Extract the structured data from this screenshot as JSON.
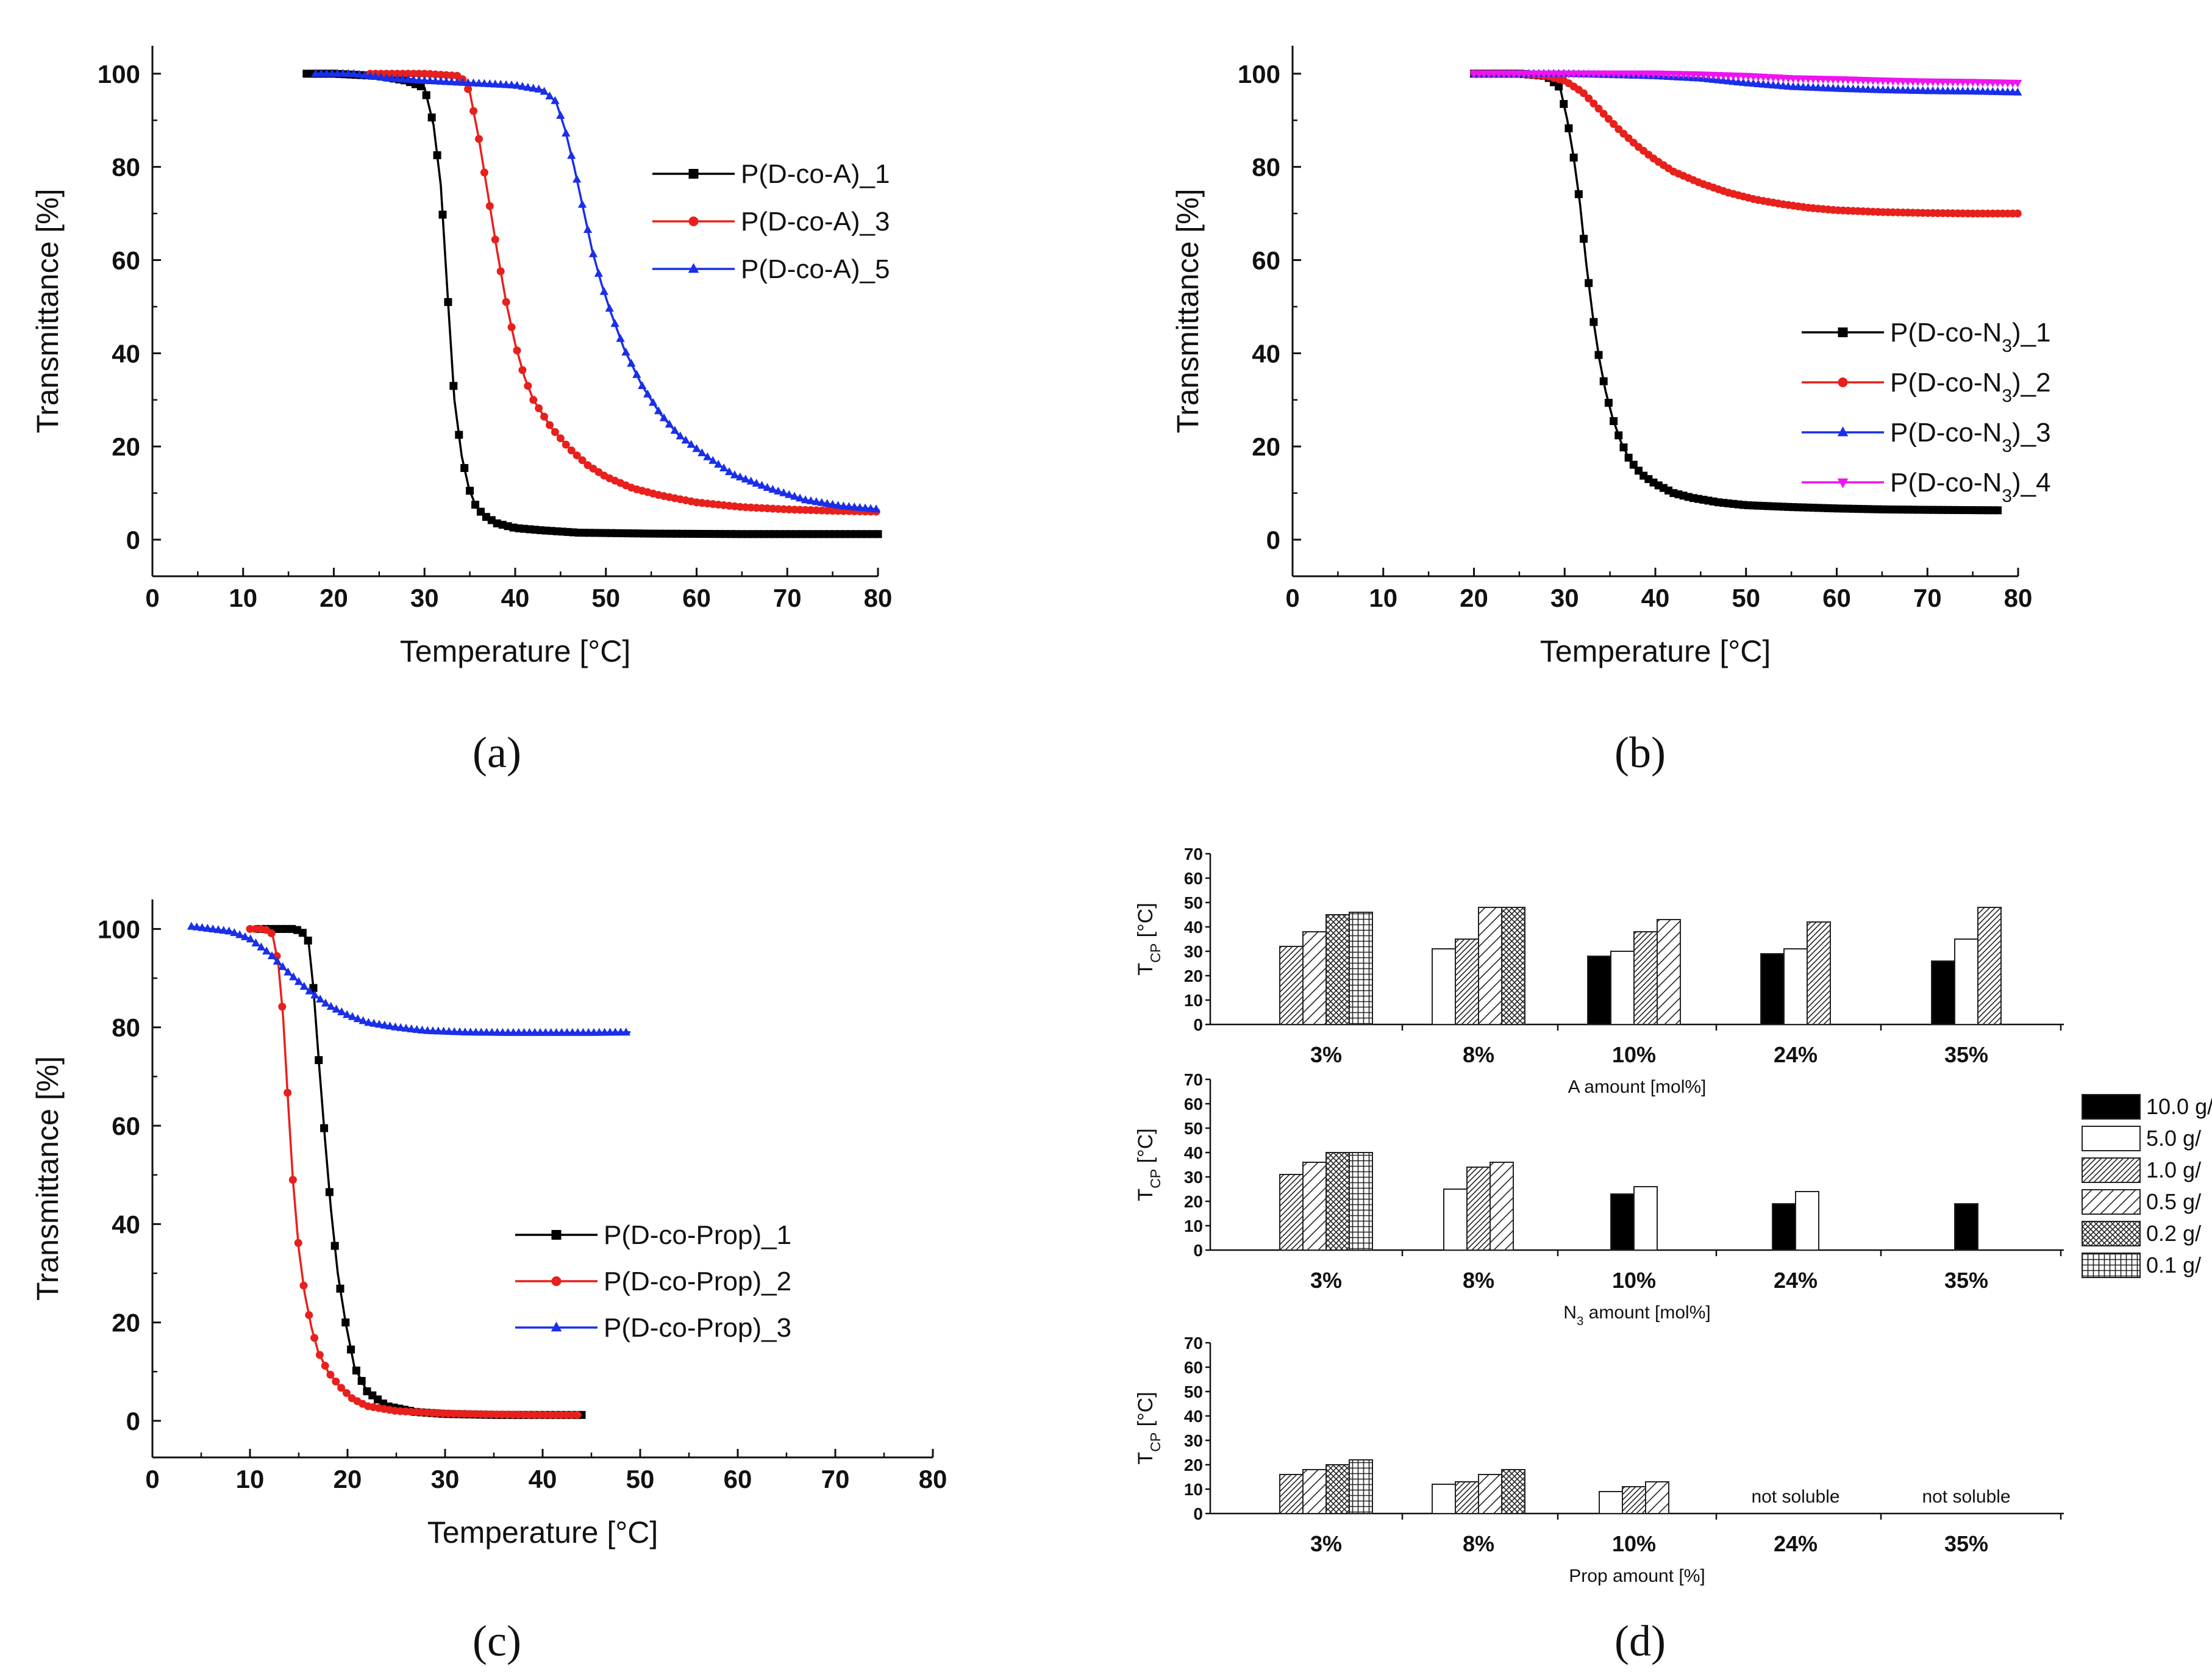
{
  "panels": {
    "a": {
      "label": "(a)"
    },
    "b": {
      "label": "(b)"
    },
    "c": {
      "label": "(c)"
    },
    "d": {
      "label": "(d)"
    }
  },
  "chart_data": [
    {
      "id": "a",
      "type": "line",
      "xlabel": "Temperature [°C]",
      "ylabel": "Transmittance [%]",
      "xlim": [
        0,
        80
      ],
      "ylim": [
        0,
        100
      ],
      "xticks": [
        0,
        10,
        20,
        30,
        40,
        50,
        60,
        70,
        80
      ],
      "yticks": [
        0,
        20,
        40,
        60,
        80,
        100
      ],
      "legend_position": "top-right",
      "series": [
        {
          "name": "P(D-co-A)_1",
          "color": "#000000",
          "marker": "square",
          "x": [
            17,
            20,
            25,
            28,
            30,
            31,
            31.8,
            32.6,
            33.3,
            34.1,
            34.9,
            35.7,
            36.7,
            38,
            40,
            43,
            47,
            55,
            65,
            80
          ],
          "y": [
            100,
            100,
            99.5,
            98.5,
            97,
            89,
            76,
            51,
            30,
            18,
            11,
            7,
            5,
            3.5,
            2.5,
            2,
            1.5,
            1.3,
            1.2,
            1.2
          ]
        },
        {
          "name": "P(D-co-A)_3",
          "color": "#e8201c",
          "marker": "circle",
          "x": [
            24,
            30,
            34,
            35,
            36,
            37,
            38,
            39,
            40,
            41,
            42,
            44,
            46,
            48,
            50,
            53,
            56,
            60,
            65,
            70,
            75,
            80
          ],
          "y": [
            100,
            100,
            99.5,
            96,
            86,
            74,
            62,
            51,
            42,
            35,
            30,
            24,
            19.5,
            16,
            13.5,
            11,
            9.5,
            8,
            7,
            6.5,
            6.2,
            6
          ]
        },
        {
          "name": "P(D-co-A)_5",
          "color": "#1a2fe8",
          "marker": "triangle",
          "x": [
            18,
            22,
            26,
            30,
            35,
            40,
            43,
            44.5,
            45.5,
            46.5,
            47.5,
            48.5,
            49.5,
            50.5,
            52,
            54,
            56,
            58,
            61,
            64,
            68,
            72,
            76,
            80
          ],
          "y": [
            100,
            100,
            99,
            98.5,
            98,
            97.5,
            96.5,
            94,
            88,
            80,
            71,
            62,
            55,
            49,
            41,
            33,
            27,
            22.5,
            18,
            14,
            11,
            8.5,
            7.2,
            6.5
          ]
        }
      ]
    },
    {
      "id": "b",
      "type": "line",
      "xlabel": "Temperature [°C]",
      "ylabel": "Transmittance [%]",
      "xlim": [
        0,
        80
      ],
      "ylim": [
        0,
        100
      ],
      "xticks": [
        0,
        10,
        20,
        30,
        40,
        50,
        60,
        70,
        80
      ],
      "yticks": [
        0,
        20,
        40,
        60,
        80,
        100
      ],
      "legend_position": "center-right",
      "series": [
        {
          "name": "P(D-co-N3)_1",
          "label_main": "P(D-co-N",
          "label_sub": "3",
          "label_tail": ")_1",
          "color": "#000000",
          "marker": "square",
          "x": [
            20,
            25,
            28,
            29.5,
            30.3,
            31,
            31.7,
            32.4,
            33.1,
            33.8,
            34.5,
            35.3,
            36.2,
            37.2,
            38.5,
            40,
            42,
            44,
            47,
            50,
            55,
            60,
            65,
            70,
            78
          ],
          "y": [
            100,
            100,
            99.5,
            97,
            90,
            82,
            72,
            59,
            48,
            39,
            32,
            26,
            21,
            17,
            14,
            12,
            10,
            9,
            8,
            7.4,
            7,
            6.7,
            6.5,
            6.4,
            6.3
          ]
        },
        {
          "name": "P(D-co-N3)_2",
          "label_main": "P(D-co-N",
          "label_sub": "3",
          "label_tail": ")_2",
          "color": "#e8201c",
          "marker": "circle",
          "x": [
            20,
            25,
            28,
            30,
            32,
            34,
            36,
            38,
            40,
            42,
            45,
            48,
            51,
            54,
            57,
            60,
            65,
            70,
            75,
            80
          ],
          "y": [
            100,
            100,
            99.5,
            98.5,
            96,
            92,
            88,
            84.5,
            81.5,
            79,
            76.5,
            74.5,
            73,
            72,
            71.2,
            70.7,
            70.3,
            70.1,
            70,
            70
          ]
        },
        {
          "name": "P(D-co-N3)_3",
          "label_main": "P(D-co-N",
          "label_sub": "3",
          "label_tail": ")_3",
          "color": "#1a2fe8",
          "marker": "triangle",
          "x": [
            20,
            30,
            40,
            45,
            50,
            55,
            60,
            65,
            70,
            75,
            80
          ],
          "y": [
            100,
            100,
            99.5,
            99,
            98,
            97.2,
            96.8,
            96.5,
            96.3,
            96.2,
            96
          ]
        },
        {
          "name": "P(D-co-N3)_4",
          "label_main": "P(D-co-N",
          "label_sub": "3",
          "label_tail": ")_4",
          "color": "#f012f0",
          "marker": "triangle-down",
          "x": [
            20,
            30,
            40,
            45,
            50,
            55,
            60,
            65,
            70,
            75,
            80
          ],
          "y": [
            100,
            100,
            100,
            99.8,
            99.5,
            99,
            98.8,
            98.5,
            98.3,
            98.2,
            98
          ]
        }
      ]
    },
    {
      "id": "c",
      "type": "line",
      "xlabel": "Temperature [°C]",
      "ylabel": "Transmittance [%]",
      "xlim": [
        0,
        80
      ],
      "ylim": [
        0,
        100
      ],
      "xticks": [
        0,
        10,
        20,
        30,
        40,
        50,
        60,
        70,
        80
      ],
      "yticks": [
        0,
        20,
        40,
        60,
        80,
        100
      ],
      "legend_position": "bottom-center",
      "series": [
        {
          "name": "P(D-co-Prop)_1",
          "color": "#000000",
          "marker": "square",
          "x": [
            11,
            13,
            14.5,
            15.3,
            16,
            16.5,
            17.1,
            17.7,
            18.3,
            19,
            19.8,
            20.7,
            22,
            24,
            27,
            30,
            35,
            40,
            44
          ],
          "y": [
            100,
            100,
            100,
            99.5,
            97.5,
            88,
            72,
            57,
            43,
            30,
            20,
            11,
            6,
            3,
            1.8,
            1.4,
            1.2,
            1.2,
            1.2
          ]
        },
        {
          "name": "P(D-co-Prop)_2",
          "color": "#e8201c",
          "marker": "circle",
          "x": [
            10,
            11.5,
            12.3,
            12.9,
            13.4,
            13.9,
            14.4,
            15,
            15.6,
            16.3,
            17,
            18,
            19.2,
            20.5,
            22,
            25,
            30,
            35,
            40,
            44
          ],
          "y": [
            100,
            100,
            99,
            93,
            82,
            65,
            49,
            35,
            26,
            19,
            14,
            10,
            7,
            4.5,
            3,
            2,
            1.5,
            1.3,
            1.2,
            1.2
          ]
        },
        {
          "name": "P(D-co-Prop)_3",
          "color": "#1a2fe8",
          "marker": "triangle",
          "x": [
            4,
            6,
            8,
            10,
            12,
            14,
            16,
            18,
            20,
            22,
            25,
            28,
            32,
            36,
            40,
            45,
            49
          ],
          "y": [
            100.5,
            100,
            99.5,
            98,
            95,
            91,
            87.5,
            84.5,
            82.5,
            81,
            80,
            79.3,
            79,
            78.9,
            78.9,
            78.9,
            79
          ]
        }
      ]
    },
    {
      "id": "d",
      "type": "bar",
      "legend_entries": [
        "10.0 g/",
        "5.0 g/",
        "1.0 g/",
        "0.5 g/",
        "0.2 g/",
        "0.1 g/"
      ],
      "legend_position": "right",
      "subplots": [
        {
          "id": "d1",
          "xlabel": "A amount [mol%]",
          "ylabel_main": "T",
          "ylabel_sub": "CP",
          "ylabel_tail": " [°C]",
          "ylim": [
            0,
            70
          ],
          "yticks": [
            0,
            10,
            20,
            30,
            40,
            50,
            60,
            70
          ],
          "categories": [
            "3%",
            "8%",
            "10%",
            "24%",
            "35%"
          ],
          "bars": [
            [
              null,
              null,
              32,
              38,
              45,
              46
            ],
            [
              null,
              31,
              35,
              48,
              48,
              null
            ],
            [
              28,
              30,
              38,
              43,
              null,
              null
            ],
            [
              29,
              31,
              42,
              null,
              null,
              null
            ],
            [
              26,
              35,
              48,
              null,
              null,
              null
            ]
          ],
          "annotations": [
            "",
            "",
            "",
            "",
            ""
          ]
        },
        {
          "id": "d2",
          "xlabel_main": "N",
          "xlabel_sub": "3",
          "xlabel_tail": " amount [mol%]",
          "ylabel_main": "T",
          "ylabel_sub": "CP",
          "ylabel_tail": " [°C]",
          "ylim": [
            0,
            70
          ],
          "yticks": [
            0,
            10,
            20,
            30,
            40,
            50,
            60,
            70
          ],
          "categories": [
            "3%",
            "8%",
            "10%",
            "24%",
            "35%"
          ],
          "bars": [
            [
              null,
              null,
              31,
              36,
              40,
              40
            ],
            [
              null,
              25,
              34,
              36,
              null,
              null
            ],
            [
              23,
              26,
              null,
              null,
              null,
              null
            ],
            [
              19,
              24,
              null,
              null,
              null,
              null
            ],
            [
              19,
              null,
              null,
              null,
              null,
              null
            ]
          ],
          "annotations": [
            "",
            "",
            "",
            "",
            ""
          ]
        },
        {
          "id": "d3",
          "xlabel": "Prop amount [%]",
          "ylabel_main": "T",
          "ylabel_sub": "CP",
          "ylabel_tail": " [°C]",
          "ylim": [
            0,
            70
          ],
          "yticks": [
            0,
            10,
            20,
            30,
            40,
            50,
            60,
            70
          ],
          "categories": [
            "3%",
            "8%",
            "10%",
            "24%",
            "35%"
          ],
          "bars": [
            [
              null,
              null,
              16,
              18,
              20,
              22
            ],
            [
              null,
              12,
              13,
              16,
              18,
              null
            ],
            [
              null,
              9,
              11,
              13,
              null,
              null
            ],
            [
              null,
              null,
              null,
              null,
              null,
              null
            ],
            [
              null,
              null,
              null,
              null,
              null,
              null
            ]
          ],
          "annotations": [
            "",
            "",
            "",
            "not soluble",
            "not soluble"
          ]
        }
      ]
    }
  ]
}
